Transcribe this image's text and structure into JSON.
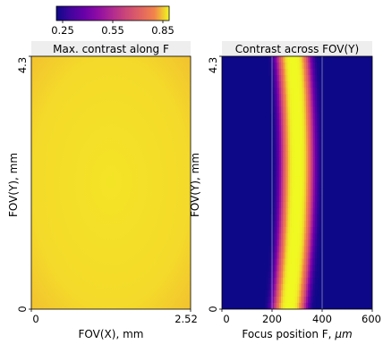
{
  "colorbar": {
    "colormap": "plasma",
    "min": 0.25,
    "max": 0.85,
    "ticks": [
      "0.25",
      "0.55",
      "0.85"
    ]
  },
  "chart_data": [
    {
      "type": "heatmap",
      "title": "Max. contrast along F",
      "xlabel": "FOV(X), mm",
      "ylabel": "FOV(Y), mm",
      "xlim": [
        0,
        2.52
      ],
      "ylim": [
        0,
        4.3
      ],
      "x_ticks": [
        "0",
        "2.52"
      ],
      "y_ticks": [
        "0",
        "4.3"
      ],
      "value_range": [
        0.77,
        0.8
      ],
      "description_values": {
        "center": 0.8,
        "corners": 0.77
      }
    },
    {
      "type": "heatmap",
      "title": "Contrast across FOV(Y)",
      "xlabel": "Focus position F, ",
      "xlabel_unit": "μm",
      "ylabel": "FOV(Y), mm",
      "xlim": [
        0,
        600
      ],
      "ylim": [
        0,
        4.3
      ],
      "x_ticks": [
        "0",
        "200",
        "400",
        "600"
      ],
      "y_ticks": [
        "0",
        "4.3"
      ],
      "peak_focus_um": {
        "y_bottom": 270,
        "y_mid": 300,
        "y_top": 285
      },
      "peak_width_um": 80,
      "peak_value": 0.85,
      "background_value": 0.25,
      "reference_lines_um": [
        200,
        400
      ]
    }
  ]
}
